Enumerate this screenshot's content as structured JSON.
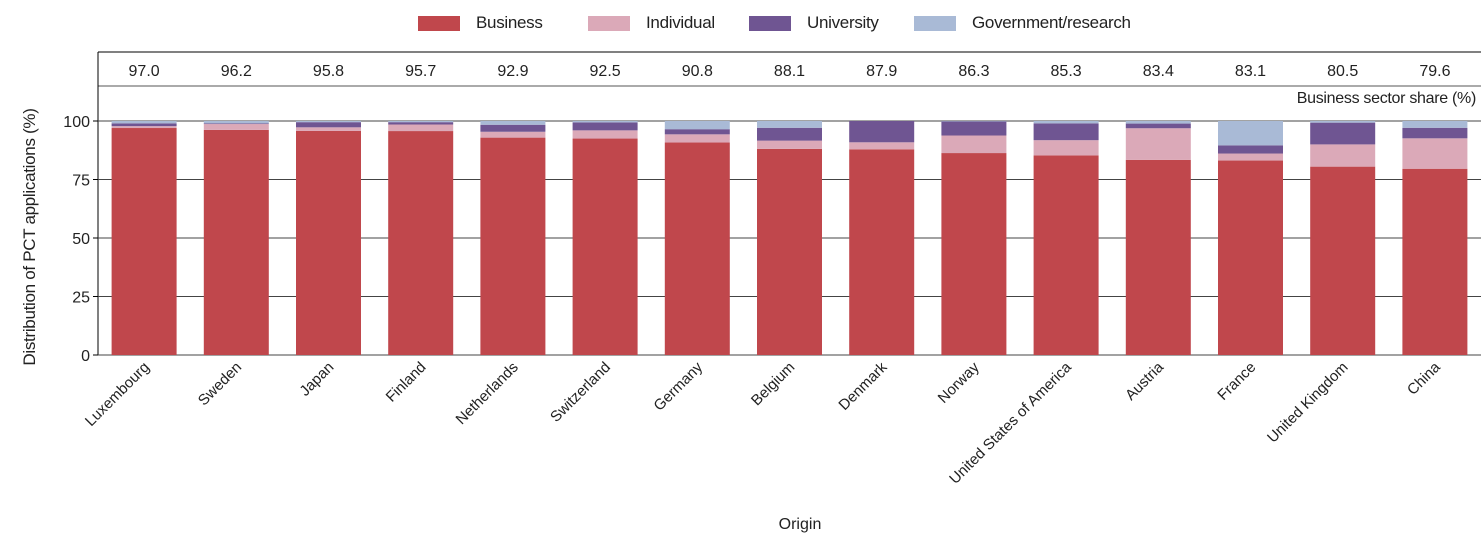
{
  "chart_data": {
    "type": "bar",
    "stacked": true,
    "categories": [
      "Luxembourg",
      "Sweden",
      "Japan",
      "Finland",
      "Netherlands",
      "Switzerland",
      "Germany",
      "Belgium",
      "Denmark",
      "Norway",
      "United States of America",
      "Austria",
      "France",
      "United Kingdom",
      "China"
    ],
    "series": [
      {
        "name": "Business",
        "color": "#c0474c",
        "values": [
          97.0,
          96.2,
          95.8,
          95.7,
          92.9,
          92.5,
          90.8,
          88.1,
          87.9,
          86.3,
          85.3,
          83.4,
          83.1,
          80.5,
          79.6
        ]
      },
      {
        "name": "Individual",
        "color": "#dba9b8",
        "values": [
          0.8,
          2.5,
          1.5,
          2.8,
          2.5,
          3.5,
          3.5,
          3.5,
          3.0,
          7.5,
          6.5,
          13.5,
          3.0,
          9.5,
          13.0
        ]
      },
      {
        "name": "University",
        "color": "#6f5592",
        "values": [
          1.2,
          0.3,
          2.2,
          1.0,
          3.0,
          3.4,
          2.2,
          5.5,
          9.1,
          6.0,
          7.2,
          2.0,
          3.5,
          9.3,
          4.5
        ]
      },
      {
        "name": "Government/research",
        "color": "#a9bad6",
        "values": [
          1.0,
          1.0,
          0.5,
          0.5,
          1.6,
          0.6,
          3.5,
          2.9,
          0.0,
          0.2,
          1.0,
          1.1,
          10.4,
          0.7,
          2.9
        ]
      }
    ],
    "business_share_labels": [
      "97.0",
      "96.2",
      "95.8",
      "95.7",
      "92.9",
      "92.5",
      "90.8",
      "88.1",
      "87.9",
      "86.3",
      "85.3",
      "83.4",
      "83.1",
      "80.5",
      "79.6"
    ],
    "share_title": "Business sector share (%)",
    "xlabel": "Origin",
    "ylabel": "Distribution of PCT applications (%)",
    "ylim": [
      0,
      100
    ],
    "yticks": [
      0,
      25,
      50,
      75,
      100
    ],
    "grid": true,
    "legend_position": "top-center"
  }
}
